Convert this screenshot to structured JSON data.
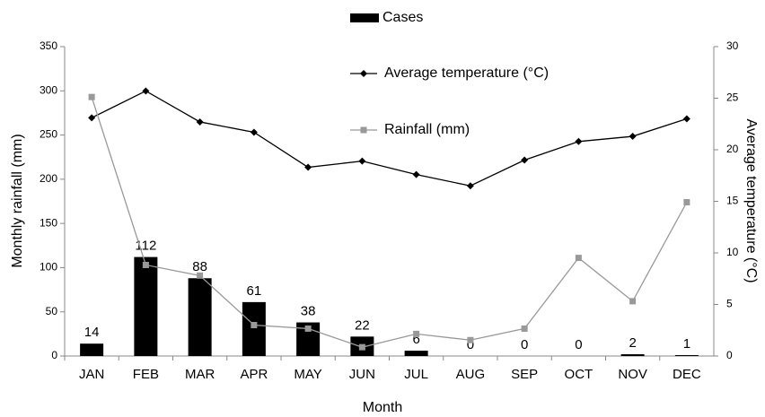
{
  "chart_data": {
    "type": "bar",
    "x_label": "Month",
    "y_label": "Monthly rainfall (mm)",
    "y2_label": "Average temperature (°C)",
    "categories": [
      "JAN",
      "FEB",
      "MAR",
      "APR",
      "MAY",
      "JUN",
      "JUL",
      "AUG",
      "SEP",
      "OCT",
      "NOV",
      "DEC"
    ],
    "series": [
      {
        "name": "Cases",
        "mark": "bar",
        "color": "#000000",
        "values": [
          14,
          112,
          88,
          61,
          38,
          22,
          6,
          0,
          0,
          0,
          2,
          1
        ]
      },
      {
        "name": "Average temperature (°C)",
        "mark": "line",
        "marker": "diamond",
        "axis": "y2",
        "color": "#000000",
        "values": [
          23.1,
          25.7,
          22.7,
          21.7,
          18.3,
          18.9,
          17.6,
          16.5,
          19.0,
          20.8,
          21.3,
          23.0
        ]
      },
      {
        "name": "Rainfall (mm)",
        "mark": "line",
        "marker": "square",
        "color": "#999999",
        "values": [
          293,
          103,
          91,
          35,
          31,
          10,
          25,
          18,
          31,
          111,
          62,
          174
        ]
      }
    ],
    "ylim": [
      0,
      350
    ],
    "yticks": [
      0,
      50,
      100,
      150,
      200,
      250,
      300,
      350
    ],
    "y2lim": [
      0,
      30
    ],
    "y2ticks": [
      0,
      5,
      10,
      15,
      20,
      25,
      30
    ],
    "grid": false
  }
}
